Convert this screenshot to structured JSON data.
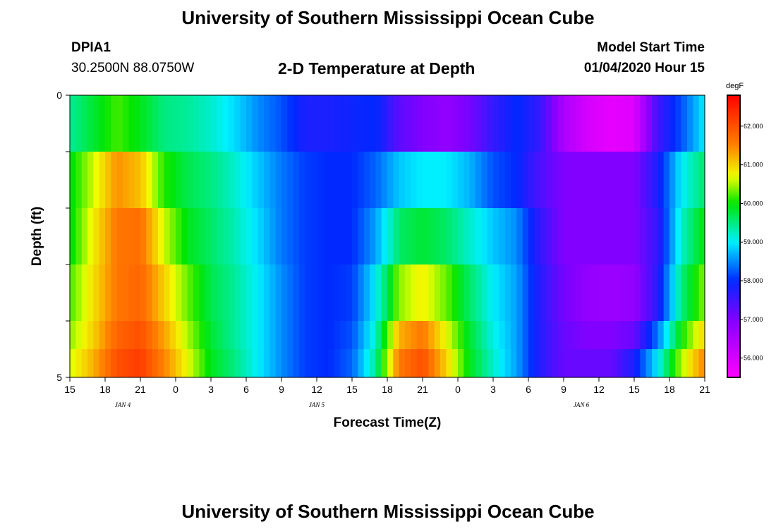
{
  "header": {
    "title_top": "University of Southern Mississippi Ocean Cube",
    "title_bottom": "University of Southern Mississippi Ocean Cube",
    "station": "DPIA1",
    "coords": "30.2500N 88.0750W",
    "plot_title": "2-D Temperature at Depth",
    "model_start_label": "Model Start Time",
    "model_start_value": "01/04/2020 Hour 15"
  },
  "chart_data": {
    "type": "heatmap",
    "title": "2-D Temperature at Depth",
    "xlabel": "Forecast Time(Z)",
    "ylabel": "Depth (ft)",
    "x_ticks": [
      "15",
      "18",
      "21",
      "0",
      "3",
      "6",
      "9",
      "12",
      "15",
      "18",
      "21",
      "0",
      "3",
      "6",
      "9",
      "12",
      "15",
      "18",
      "21"
    ],
    "x_hours_since_start": [
      0,
      3,
      6,
      9,
      12,
      15,
      18,
      21,
      24,
      27,
      30,
      33,
      36,
      39,
      42,
      45,
      48,
      51,
      54
    ],
    "x_range_hours": [
      0,
      54
    ],
    "date_labels": [
      {
        "text": "JAN 4",
        "hour": 4.5
      },
      {
        "text": "JAN 5",
        "hour": 21
      },
      {
        "text": "JAN 6",
        "hour": 43.5
      }
    ],
    "y_ticks": [
      "0",
      "5"
    ],
    "y_range": [
      0,
      5
    ],
    "colorbar": {
      "unit": "degF",
      "min": 55.5,
      "max": 62.8,
      "ticks": [
        "56.000",
        "57.000",
        "58.000",
        "59.000",
        "60.000",
        "61.000",
        "62.000"
      ],
      "tick_values": [
        56,
        57,
        58,
        59,
        60,
        61,
        62
      ]
    },
    "depth_levels_ft": [
      0.25,
      1.25,
      2.25,
      3.25,
      4.25,
      4.75
    ],
    "time_hours": [
      0,
      2,
      4,
      6,
      8,
      10,
      12,
      14,
      16,
      18,
      20,
      22,
      24,
      26,
      28,
      30,
      32,
      34,
      36,
      38,
      40,
      42,
      44,
      46,
      48,
      50,
      52,
      54
    ],
    "values": [
      [
        59.4,
        59.8,
        60.2,
        59.9,
        59.5,
        59.4,
        59.2,
        58.9,
        58.5,
        58.2,
        57.8,
        57.8,
        57.9,
        58.0,
        57.3,
        57.0,
        56.8,
        57.1,
        57.6,
        58.0,
        57.6,
        56.5,
        56.0,
        55.8,
        55.9,
        57.5,
        58.2,
        59.0
      ],
      [
        59.9,
        60.6,
        61.4,
        61.1,
        60.1,
        59.7,
        59.5,
        59.2,
        58.8,
        58.4,
        58.1,
        58.0,
        58.0,
        58.3,
        58.8,
        59.0,
        59.0,
        58.7,
        58.2,
        58.0,
        57.4,
        57.0,
        57.0,
        57.0,
        57.0,
        57.8,
        59.0,
        59.6
      ],
      [
        59.9,
        60.8,
        61.6,
        61.7,
        60.6,
        59.9,
        59.6,
        59.3,
        58.9,
        58.4,
        58.1,
        58.0,
        58.0,
        58.6,
        59.6,
        59.8,
        59.6,
        59.2,
        58.8,
        58.5,
        57.6,
        57.0,
        57.0,
        57.0,
        57.0,
        57.6,
        59.2,
        60.0
      ],
      [
        60.2,
        60.9,
        61.6,
        61.8,
        61.0,
        60.3,
        59.7,
        59.4,
        59.0,
        58.5,
        58.1,
        58.0,
        58.1,
        59.0,
        60.4,
        60.8,
        60.3,
        59.6,
        59.0,
        58.6,
        57.7,
        57.1,
        56.8,
        56.7,
        56.8,
        57.7,
        59.5,
        60.4
      ],
      [
        60.4,
        61.0,
        61.8,
        62.0,
        61.3,
        60.5,
        59.8,
        59.4,
        59.0,
        58.5,
        58.1,
        58.0,
        58.2,
        59.2,
        61.2,
        61.6,
        60.7,
        59.8,
        59.1,
        58.6,
        57.7,
        57.2,
        57.0,
        57.0,
        57.2,
        58.4,
        60.0,
        61.0
      ],
      [
        60.6,
        61.2,
        62.0,
        62.2,
        61.5,
        60.7,
        59.9,
        59.5,
        59.0,
        58.5,
        58.1,
        58.0,
        58.3,
        59.4,
        61.6,
        62.0,
        61.0,
        59.9,
        59.2,
        58.6,
        57.7,
        57.2,
        57.2,
        57.2,
        57.8,
        59.0,
        60.5,
        61.5
      ]
    ]
  }
}
